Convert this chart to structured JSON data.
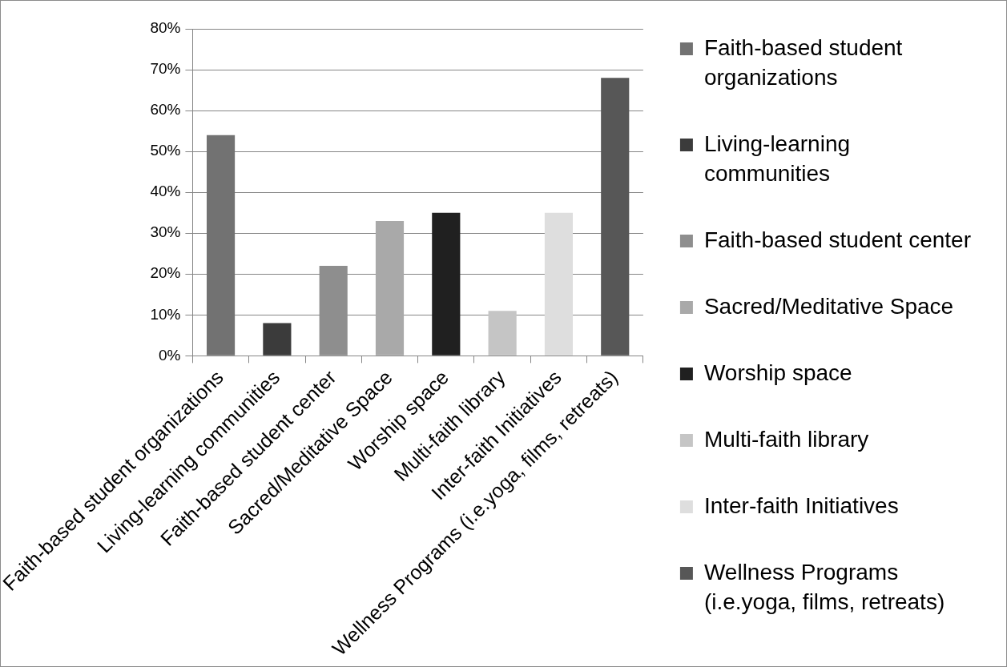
{
  "chart_data": {
    "type": "bar",
    "categories": [
      "Faith-based student organizations",
      "Living-learning communities",
      "Faith-based student center",
      "Sacred/Meditative Space",
      "Worship space",
      "Multi-faith library",
      "Inter-faith Initiatives",
      "Wellness Programs (i.e.yoga, films, retreats)"
    ],
    "series": [
      {
        "name": "Faith-based student organizations",
        "color": "#727272",
        "values": [
          54,
          null,
          null,
          null,
          null,
          null,
          null,
          null
        ]
      },
      {
        "name": "Living-learning communities",
        "color": "#3b3b3b",
        "values": [
          null,
          8,
          null,
          null,
          null,
          null,
          null,
          null
        ]
      },
      {
        "name": "Faith-based student center",
        "color": "#8e8e8e",
        "values": [
          null,
          null,
          22,
          null,
          null,
          null,
          null,
          null
        ]
      },
      {
        "name": "Sacred/Meditative Space",
        "color": "#a9a9a9",
        "values": [
          null,
          null,
          null,
          33,
          null,
          null,
          null,
          null
        ]
      },
      {
        "name": "Worship space",
        "color": "#202020",
        "values": [
          null,
          null,
          null,
          null,
          35,
          null,
          null,
          null
        ]
      },
      {
        "name": "Multi-faith library",
        "color": "#c5c5c5",
        "values": [
          null,
          null,
          null,
          null,
          null,
          11,
          null,
          null
        ]
      },
      {
        "name": "Inter-faith Initiatives",
        "color": "#dedede",
        "values": [
          null,
          null,
          null,
          null,
          null,
          null,
          35,
          null
        ]
      },
      {
        "name": "Wellness Programs (i.e.yoga, films, retreats)",
        "color": "#575757",
        "values": [
          null,
          null,
          null,
          null,
          null,
          null,
          null,
          68
        ]
      }
    ],
    "ylim": [
      0,
      80
    ],
    "yticks": [
      {
        "value": 0,
        "label": "0%"
      },
      {
        "value": 10,
        "label": "10%"
      },
      {
        "value": 20,
        "label": "20%"
      },
      {
        "value": 30,
        "label": "30%"
      },
      {
        "value": 40,
        "label": "40%"
      },
      {
        "value": 50,
        "label": "50%"
      },
      {
        "value": 60,
        "label": "60%"
      },
      {
        "value": 70,
        "label": "70%"
      },
      {
        "value": 80,
        "label": "80%"
      }
    ],
    "grid": "y",
    "legend": "right"
  }
}
